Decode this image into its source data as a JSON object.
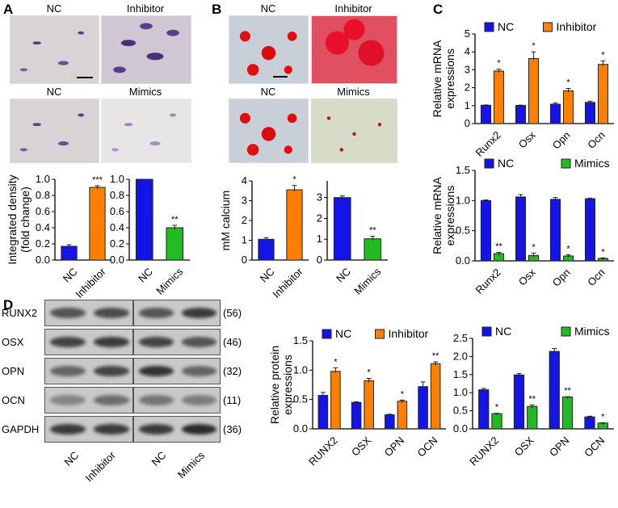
{
  "panels": {
    "a": "A",
    "b": "B",
    "c": "C",
    "d": "D"
  },
  "panel_a": {
    "images": {
      "top_left": "NC",
      "top_right": "Inhibitor",
      "bottom_left": "NC",
      "bottom_right": "Mimics"
    }
  },
  "panel_b": {
    "images": {
      "top_left": "NC",
      "top_right": "Inhibitor",
      "bottom_left": "NC",
      "bottom_right": "Mimics"
    }
  },
  "panel_d": {
    "blot_rows": [
      {
        "label": "RUNX2",
        "size": "(56)"
      },
      {
        "label": "OSX",
        "size": "(46)"
      },
      {
        "label": "OPN",
        "size": "(32)"
      },
      {
        "label": "OCN",
        "size": "(11)"
      },
      {
        "label": "GAPDH",
        "size": "(36)"
      }
    ],
    "lanes": [
      "NC",
      "Inhibitor",
      "NC",
      "Mimics"
    ]
  },
  "colors": {
    "nc": "#1414e6",
    "inhibitor": "#ff8000",
    "mimics": "#22bb22"
  },
  "chart_data": [
    {
      "id": "a1",
      "type": "bar",
      "categories": [
        "NC",
        "Inhibitor"
      ],
      "values": [
        0.17,
        0.9
      ],
      "errors": [
        0.02,
        0.02
      ],
      "sig": [
        "",
        "***"
      ],
      "ylabel": [
        "Integrated density",
        "(fold change)"
      ],
      "ylim": [
        0,
        1.0
      ],
      "ticks": [
        "0.0",
        "0.2",
        "0.4",
        "0.6",
        "0.8",
        "1.0"
      ],
      "colors": [
        "nc",
        "inhibitor"
      ]
    },
    {
      "id": "a2",
      "type": "bar",
      "categories": [
        "NC",
        "Mimics"
      ],
      "values": [
        1.0,
        0.4
      ],
      "errors": [
        0,
        0.03
      ],
      "sig": [
        "",
        "**"
      ],
      "ylabel": [],
      "ylim": [
        0,
        1.0
      ],
      "ticks": [
        "0.0",
        "0.2",
        "0.4",
        "0.6",
        "0.8",
        "1.0"
      ],
      "colors": [
        "nc",
        "mimics"
      ]
    },
    {
      "id": "b1",
      "type": "bar",
      "categories": [
        "NC",
        "Inhibitor"
      ],
      "values": [
        1.05,
        3.55
      ],
      "errors": [
        0.08,
        0.22
      ],
      "sig": [
        "",
        "*"
      ],
      "ylabel": [
        "mM calcium"
      ],
      "ylim": [
        0,
        4
      ],
      "ticks": [
        "0",
        "1",
        "2",
        "3",
        "4"
      ],
      "colors": [
        "nc",
        "inhibitor"
      ]
    },
    {
      "id": "b2",
      "type": "bar",
      "categories": [
        "NC",
        "Mimics"
      ],
      "values": [
        3.0,
        1.02
      ],
      "errors": [
        0.08,
        0.12
      ],
      "sig": [
        "",
        "**"
      ],
      "ylabel": [],
      "ylim": [
        0,
        3.8
      ],
      "ticks": [
        "0",
        "1",
        "2",
        "3"
      ],
      "colors": [
        "nc",
        "mimics"
      ]
    },
    {
      "id": "c1",
      "type": "bar",
      "categories": [
        "Runx2",
        "Osx",
        "Opn",
        "Ocn"
      ],
      "series": [
        {
          "name": "NC",
          "values": [
            1.02,
            1.01,
            1.08,
            1.18
          ],
          "errors": [
            0.02,
            0.02,
            0.07,
            0.07
          ]
        },
        {
          "name": "Inhibitor",
          "values": [
            2.93,
            3.63,
            1.83,
            3.3
          ],
          "errors": [
            0.1,
            0.37,
            0.13,
            0.2
          ]
        }
      ],
      "sig": [
        "*",
        "*",
        "*",
        "*"
      ],
      "ylabel": [
        "Relative mRNA",
        "expressions"
      ],
      "ylim": [
        0,
        5
      ],
      "ticks": [
        "0",
        "1",
        "2",
        "3",
        "4",
        "5"
      ],
      "colors": [
        "nc",
        "inhibitor"
      ],
      "legend": "top"
    },
    {
      "id": "c2",
      "type": "bar",
      "categories": [
        "Runx2",
        "Osx",
        "Opn",
        "Ocn"
      ],
      "series": [
        {
          "name": "NC",
          "values": [
            1.0,
            1.06,
            1.02,
            1.03
          ],
          "errors": [
            0.01,
            0.04,
            0.03,
            0.01
          ]
        },
        {
          "name": "Mimics",
          "values": [
            0.12,
            0.09,
            0.08,
            0.04
          ],
          "errors": [
            0.02,
            0.04,
            0.02,
            0.01
          ]
        }
      ],
      "sig": [
        "**",
        "*",
        "*",
        "*"
      ],
      "ylabel": [
        "Relative mRNA",
        "expressions"
      ],
      "ylim": [
        0,
        1.5
      ],
      "ticks": [
        "0.0",
        "0.5",
        "1.0",
        "1.5"
      ],
      "colors": [
        "nc",
        "mimics"
      ],
      "legend": "top"
    },
    {
      "id": "d1",
      "type": "bar",
      "categories": [
        "RUNX2",
        "OSX",
        "OPN",
        "OCN"
      ],
      "series": [
        {
          "name": "NC",
          "values": [
            0.57,
            0.45,
            0.24,
            0.72
          ],
          "errors": [
            0.05,
            0.01,
            0.01,
            0.08
          ]
        },
        {
          "name": "Inhibitor",
          "values": [
            0.98,
            0.82,
            0.47,
            1.11
          ],
          "errors": [
            0.06,
            0.04,
            0.02,
            0.03
          ]
        }
      ],
      "sig": [
        "*",
        "*",
        "*",
        "**"
      ],
      "ylabel": [
        "Relative protein",
        "expressions"
      ],
      "ylim": [
        0,
        1.5
      ],
      "ticks": [
        "0.0",
        "0.5",
        "1.0",
        "1.5"
      ],
      "colors": [
        "nc",
        "inhibitor"
      ],
      "legend": "top"
    },
    {
      "id": "d2",
      "type": "bar",
      "categories": [
        "RUNX2",
        "OSX",
        "OPN",
        "OCN"
      ],
      "series": [
        {
          "name": "NC",
          "values": [
            1.08,
            1.49,
            2.14,
            0.33
          ],
          "errors": [
            0.04,
            0.04,
            0.08,
            0.02
          ]
        },
        {
          "name": "Mimics",
          "values": [
            0.42,
            0.62,
            0.88,
            0.16
          ],
          "errors": [
            0.01,
            0.04,
            0.01,
            0.01
          ]
        }
      ],
      "sig": [
        "*",
        "**",
        "**",
        "*"
      ],
      "ylabel": [],
      "ylim": [
        0,
        2.5
      ],
      "ticks": [
        "0.0",
        "0.5",
        "1.0",
        "1.5",
        "2.0",
        "2.5"
      ],
      "colors": [
        "nc",
        "mimics"
      ],
      "legend": "top"
    }
  ]
}
